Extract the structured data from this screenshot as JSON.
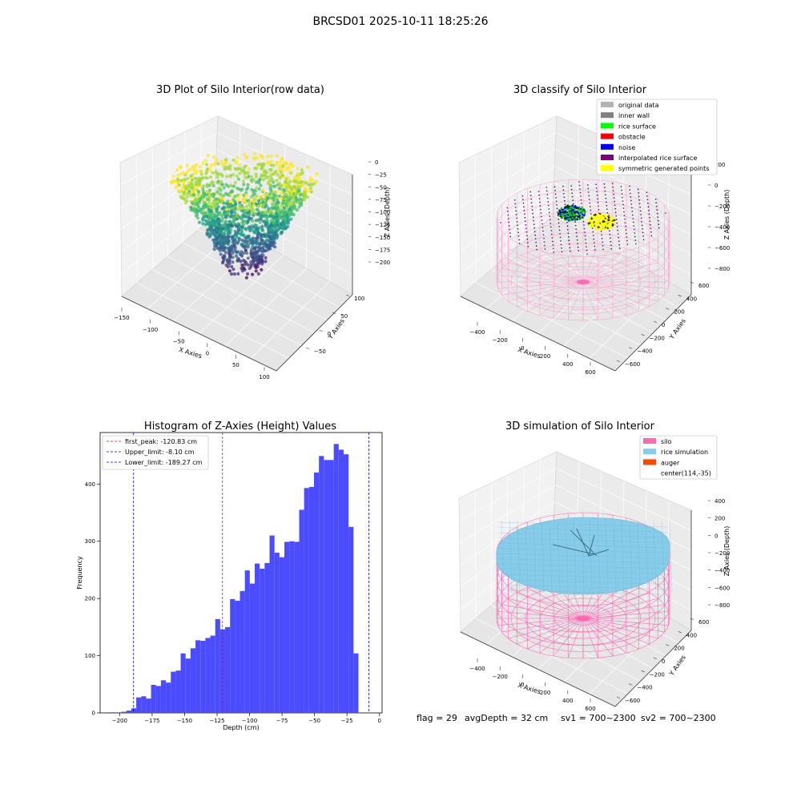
{
  "suptitle": "BRCSD01 2025-10-11 18:25:26",
  "footer": {
    "flag": "flag = 29",
    "avg_depth": "avgDepth = 32 cm",
    "sv1": "sv1 = 700~2300",
    "sv2": "sv2 = 700~2300"
  },
  "colors": {
    "histogram_bar": "#4b4bff",
    "first_peak_line": "#ff0000",
    "limit_lines": "#0000ff",
    "silo_wire": "#ff69b4",
    "rice_sim": "#87cdea",
    "grey_pane": "#f2f2f2"
  },
  "chart_data": [
    {
      "type": "scatter",
      "title": "3D Plot of Silo Interior(row data)",
      "xlabel": "X Axies",
      "ylabel": "Y Axies",
      "zlabel": "Z Axies (Depth)",
      "x_ticks": [
        "−150",
        "−100",
        "−50",
        "0",
        "50",
        "100"
      ],
      "y_ticks": [
        "−50",
        "0",
        "50",
        "100"
      ],
      "z_ticks": [
        "0",
        "−25",
        "−50",
        "−75",
        "−100",
        "−125",
        "−150",
        "−175",
        "−200"
      ],
      "xlim": [
        -150,
        110
      ],
      "ylim": [
        -80,
        130
      ],
      "zlim": [
        -215,
        0
      ],
      "colormap": "viridis",
      "point_cloud": "funnel-shaped cloud of depth points, top rim near -25, bottom near -210"
    },
    {
      "type": "scatter",
      "title": "3D classify of Silo Interior",
      "xlabel": "X Axies",
      "ylabel": "Y Axies",
      "zlabel": "Z Axies (Depth)",
      "x_ticks": [
        "−400",
        "−200",
        "0",
        "200",
        "400",
        "600"
      ],
      "y_ticks": [
        "−600",
        "−400",
        "−200",
        "0",
        "200",
        "400",
        "600"
      ],
      "z_ticks": [
        "200",
        "0",
        "−200",
        "−400",
        "−600",
        "−800"
      ],
      "legend": [
        {
          "label": "original data",
          "color": "#b3b3b3"
        },
        {
          "label": "inner wall",
          "color": "#808080"
        },
        {
          "label": "rice surface",
          "color": "#00ff00"
        },
        {
          "label": "obstacle",
          "color": "#ff0000"
        },
        {
          "label": "noise",
          "color": "#0000ff"
        },
        {
          "label": "interpolated rice surface",
          "color": "#800080"
        },
        {
          "label": "symmetric generated points",
          "color": "#ffff00"
        }
      ],
      "legend_position": "top-right"
    },
    {
      "type": "bar",
      "title": "Histogram of Z-Axies (Height) Values",
      "xlabel": "Depth (cm)",
      "ylabel": "Frequency",
      "xlim": [
        -215,
        2
      ],
      "ylim": [
        0,
        490
      ],
      "x_ticks": [
        -200,
        -175,
        -150,
        -125,
        -100,
        -75,
        -50,
        -25,
        0
      ],
      "y_ticks": [
        0,
        100,
        200,
        300,
        400
      ],
      "bin_start": -210,
      "bin_width": 3.8,
      "values": [
        1,
        1,
        1,
        2,
        4,
        8,
        27,
        29,
        25,
        49,
        47,
        57,
        53,
        72,
        74,
        104,
        95,
        113,
        127,
        126,
        131,
        135,
        164,
        146,
        150,
        199,
        196,
        213,
        249,
        226,
        261,
        252,
        262,
        310,
        280,
        272,
        299,
        300,
        299,
        355,
        393,
        395,
        420,
        449,
        442,
        442,
        470,
        460,
        452,
        325,
        104
      ],
      "vlines": [
        {
          "label": "first_peak: -120.83 cm",
          "x": -120.83,
          "color": "#ff0000"
        },
        {
          "label": "Upper_limit: -8.10 cm",
          "x": -8.1,
          "color": "#0000ff"
        },
        {
          "label": "Lower_limit: -189.27 cm",
          "x": -189.27,
          "color": "#0000ff"
        }
      ],
      "legend_position": "top-left"
    },
    {
      "type": "scatter",
      "title": "3D simulation of Silo Interior",
      "xlabel": "X Axies",
      "ylabel": "Y Axies",
      "zlabel": "Z Axies (Depth)",
      "x_ticks": [
        "−400",
        "−200",
        "0",
        "200",
        "400",
        "600"
      ],
      "y_ticks": [
        "−600",
        "−400",
        "−200",
        "0",
        "200",
        "400",
        "600"
      ],
      "z_ticks": [
        "400",
        "200",
        "0",
        "−200",
        "−400",
        "−600",
        "−800"
      ],
      "legend": [
        {
          "label": "silo",
          "color": "#ff69b4"
        },
        {
          "label": "rice simulation",
          "color": "#87cdea"
        },
        {
          "label": "auger",
          "color": "#ff4500"
        },
        {
          "label": "center(114,-35)",
          "color": ""
        }
      ],
      "legend_position": "top-right"
    }
  ]
}
